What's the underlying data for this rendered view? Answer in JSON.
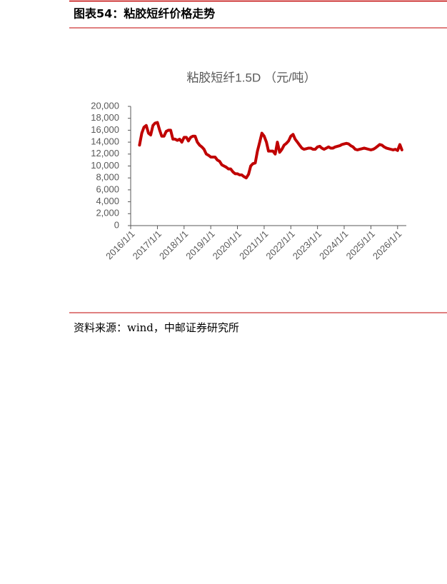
{
  "header": {
    "title": "图表54：粘胶短纤价格走势"
  },
  "footer": {
    "source": "资料来源：wind，中邮证券研究所"
  },
  "chart_data": {
    "type": "line",
    "title": "粘胶短纤1.5D （元/吨）",
    "color": "#c00000",
    "xlim": [
      "2016/1/1",
      "2026/4/1"
    ],
    "xticks": [
      "2016/1/1",
      "2017/1/1",
      "2018/1/1",
      "2019/1/1",
      "2020/1/1",
      "2021/1/1",
      "2022/1/1",
      "2023/1/1",
      "2024/1/1",
      "2025/1/1",
      "2026/1/1"
    ],
    "ylim": [
      0,
      20000
    ],
    "yticks": [
      0,
      {
        "value": 2000,
        "label": "2,000"
      },
      {
        "value": 4000,
        "label": "4,000"
      },
      {
        "value": 6000,
        "label": "6,000"
      },
      {
        "value": 8000,
        "label": "8,000"
      },
      {
        "value": 10000,
        "label": "10,000"
      },
      {
        "value": 12000,
        "label": "12,000"
      },
      {
        "value": 14000,
        "label": "14,000"
      },
      {
        "value": 16000,
        "label": "16,000"
      },
      {
        "value": 18000,
        "label": "18,000"
      },
      {
        "value": 20000,
        "label": "20,000"
      }
    ],
    "x": [
      "2016/5/1",
      "2016/6/1",
      "2016/7/1",
      "2016/8/1",
      "2016/9/1",
      "2016/10/1",
      "2016/11/1",
      "2016/12/1",
      "2017/1/1",
      "2017/2/1",
      "2017/3/1",
      "2017/4/1",
      "2017/5/1",
      "2017/6/1",
      "2017/7/1",
      "2017/8/1",
      "2017/9/1",
      "2017/10/1",
      "2017/11/1",
      "2017/12/1",
      "2018/1/1",
      "2018/2/1",
      "2018/3/1",
      "2018/4/1",
      "2018/5/1",
      "2018/6/1",
      "2018/7/1",
      "2018/8/1",
      "2018/9/1",
      "2018/10/1",
      "2018/11/1",
      "2018/12/1",
      "2019/1/1",
      "2019/2/1",
      "2019/3/1",
      "2019/4/1",
      "2019/5/1",
      "2019/6/1",
      "2019/7/1",
      "2019/8/1",
      "2019/9/1",
      "2019/10/1",
      "2019/11/1",
      "2019/12/1",
      "2020/1/1",
      "2020/2/1",
      "2020/3/1",
      "2020/4/1",
      "2020/5/1",
      "2020/6/1",
      "2020/7/1",
      "2020/8/1",
      "2020/9/1",
      "2020/10/1",
      "2020/11/1",
      "2020/12/1",
      "2021/1/1",
      "2021/2/1",
      "2021/3/1",
      "2021/4/1",
      "2021/5/1",
      "2021/6/1",
      "2021/7/1",
      "2021/8/1",
      "2021/9/1",
      "2021/10/1",
      "2021/11/1",
      "2021/12/1",
      "2022/1/1",
      "2022/2/1",
      "2022/3/1",
      "2022/4/1",
      "2022/5/1",
      "2022/6/1",
      "2022/7/1",
      "2022/8/1",
      "2022/9/1",
      "2022/10/1",
      "2022/11/1",
      "2022/12/1",
      "2023/1/1",
      "2023/2/1",
      "2023/3/1",
      "2023/4/1",
      "2023/5/1",
      "2023/6/1",
      "2023/7/1",
      "2023/8/1",
      "2023/9/1",
      "2023/10/1",
      "2023/11/1",
      "2023/12/1",
      "2024/1/1",
      "2024/2/1",
      "2024/3/1",
      "2024/4/1",
      "2024/5/1",
      "2024/6/1",
      "2024/7/1",
      "2024/8/1",
      "2024/9/1",
      "2024/10/1",
      "2024/11/1",
      "2024/12/1",
      "2025/1/1",
      "2025/2/1",
      "2025/3/1",
      "2025/4/1",
      "2025/5/1",
      "2025/6/1",
      "2025/7/1",
      "2025/8/1",
      "2025/9/1",
      "2025/10/1",
      "2025/11/1",
      "2025/12/1",
      "2026/1/1",
      "2026/2/1",
      "2026/3/1"
    ],
    "values": [
      13500,
      15500,
      16500,
      16800,
      15500,
      15200,
      16800,
      17200,
      17300,
      16000,
      15000,
      15000,
      15800,
      16000,
      16000,
      14500,
      14500,
      14300,
      14500,
      14000,
      14800,
      14800,
      14200,
      14800,
      15000,
      15000,
      14000,
      13500,
      13200,
      12800,
      12000,
      11800,
      11500,
      11500,
      11500,
      11000,
      10800,
      10200,
      10000,
      9800,
      9500,
      9500,
      9000,
      8700,
      8700,
      8500,
      8500,
      8200,
      8000,
      8600,
      10000,
      10400,
      10500,
      12500,
      14000,
      15500,
      15000,
      14000,
      12500,
      12500,
      12500,
      12000,
      14000,
      12300,
      12800,
      13500,
      13800,
      14200,
      15000,
      15300,
      14500,
      14000,
      13500,
      13000,
      12800,
      12900,
      13000,
      13000,
      12800,
      12800,
      13200,
      13300,
      13000,
      12800,
      13000,
      13200,
      13000,
      13000,
      13200,
      13300,
      13400,
      13600,
      13700,
      13800,
      13700,
      13400,
      13200,
      12800,
      12700,
      12800,
      12900,
      13000,
      12900,
      12800,
      12700,
      12800,
      13000,
      13300,
      13600,
      13500,
      13200,
      13000,
      12900,
      12800,
      12700,
      12800,
      12600,
      13600,
      12700
    ]
  }
}
